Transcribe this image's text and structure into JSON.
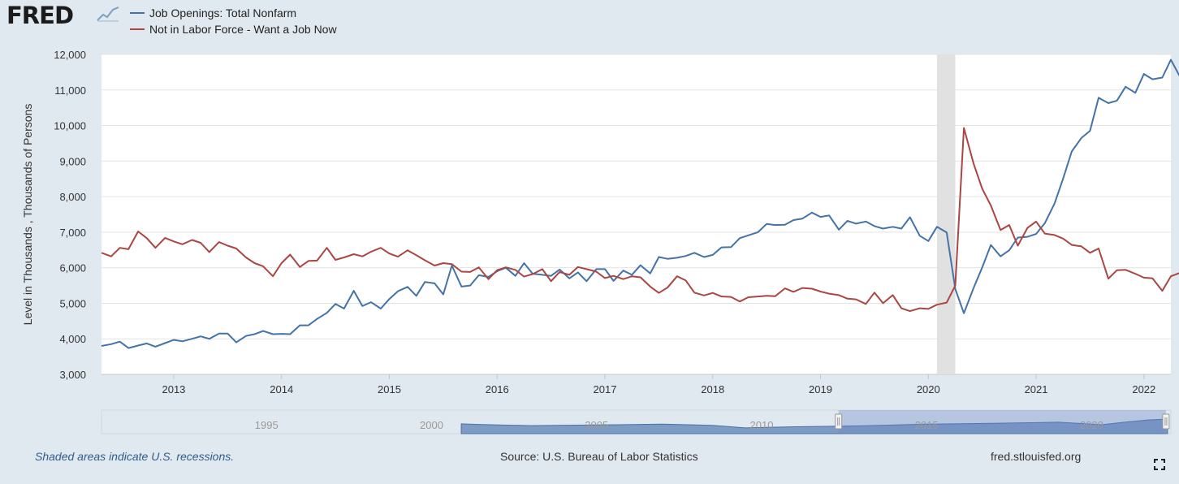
{
  "header": {
    "logo_text": "FRED",
    "logo_icon": "chart-line-icon"
  },
  "legend": [
    {
      "label": "Job Openings: Total Nonfarm",
      "color": "#4572a7"
    },
    {
      "label": "Not in Labor Force - Want a Job Now",
      "color": "#aa4643"
    }
  ],
  "footer": {
    "note": "Shaded areas indicate U.S. recessions.",
    "source": "Source: U.S. Bureau of Labor Statistics",
    "url": "fred.stlouisfed.org",
    "expand_icon": "fullscreen-icon"
  },
  "navigator": {
    "tick_labels": [
      "1995",
      "2000",
      "2005",
      "2010",
      "2015",
      "2020"
    ],
    "selected_range": [
      2012.33,
      2022.25
    ]
  },
  "chart_data": {
    "type": "line",
    "ylabel": "Level in Thousands , Thousands of Persons",
    "xlim": [
      2012.33,
      2022.25
    ],
    "ylim": [
      3000,
      12000
    ],
    "y_ticks": [
      3000,
      4000,
      5000,
      6000,
      7000,
      8000,
      9000,
      10000,
      11000,
      12000
    ],
    "y_tick_labels": [
      "3,000",
      "4,000",
      "5,000",
      "6,000",
      "7,000",
      "8,000",
      "9,000",
      "10,000",
      "11,000",
      "12,000"
    ],
    "x_ticks": [
      2013,
      2014,
      2015,
      2016,
      2017,
      2018,
      2019,
      2020,
      2021,
      2022
    ],
    "x_tick_labels": [
      "2013",
      "2014",
      "2015",
      "2016",
      "2017",
      "2018",
      "2019",
      "2020",
      "2021",
      "2022"
    ],
    "grid": true,
    "recessions": [
      [
        2020.08,
        2020.25
      ]
    ],
    "series": [
      {
        "name": "Job Openings: Total Nonfarm",
        "color": "#4572a7",
        "points": [
          [
            2012.33,
            3800
          ],
          [
            2012.42,
            3850
          ],
          [
            2012.5,
            3920
          ],
          [
            2012.58,
            3740
          ],
          [
            2012.67,
            3810
          ],
          [
            2012.75,
            3870
          ],
          [
            2012.83,
            3780
          ],
          [
            2012.92,
            3880
          ],
          [
            2013.0,
            3970
          ],
          [
            2013.08,
            3930
          ],
          [
            2013.17,
            4000
          ],
          [
            2013.25,
            4070
          ],
          [
            2013.33,
            4000
          ],
          [
            2013.42,
            4150
          ],
          [
            2013.5,
            4150
          ],
          [
            2013.58,
            3900
          ],
          [
            2013.67,
            4080
          ],
          [
            2013.75,
            4130
          ],
          [
            2013.83,
            4220
          ],
          [
            2013.92,
            4130
          ],
          [
            2014.0,
            4140
          ],
          [
            2014.08,
            4130
          ],
          [
            2014.17,
            4380
          ],
          [
            2014.25,
            4380
          ],
          [
            2014.33,
            4560
          ],
          [
            2014.42,
            4730
          ],
          [
            2014.5,
            4980
          ],
          [
            2014.58,
            4850
          ],
          [
            2014.67,
            5350
          ],
          [
            2014.75,
            4920
          ],
          [
            2014.83,
            5030
          ],
          [
            2014.92,
            4850
          ],
          [
            2015.0,
            5120
          ],
          [
            2015.08,
            5340
          ],
          [
            2015.17,
            5460
          ],
          [
            2015.25,
            5210
          ],
          [
            2015.33,
            5600
          ],
          [
            2015.42,
            5560
          ],
          [
            2015.5,
            5250
          ],
          [
            2015.58,
            6060
          ],
          [
            2015.67,
            5470
          ],
          [
            2015.75,
            5500
          ],
          [
            2015.83,
            5790
          ],
          [
            2015.92,
            5740
          ],
          [
            2016.0,
            5900
          ],
          [
            2016.08,
            6000
          ],
          [
            2016.17,
            5770
          ],
          [
            2016.25,
            6130
          ],
          [
            2016.33,
            5830
          ],
          [
            2016.42,
            5800
          ],
          [
            2016.5,
            5770
          ],
          [
            2016.58,
            5950
          ],
          [
            2016.67,
            5700
          ],
          [
            2016.75,
            5870
          ],
          [
            2016.83,
            5620
          ],
          [
            2016.92,
            5960
          ],
          [
            2017.0,
            5960
          ],
          [
            2017.08,
            5630
          ],
          [
            2017.17,
            5920
          ],
          [
            2017.25,
            5800
          ],
          [
            2017.33,
            6070
          ],
          [
            2017.42,
            5840
          ],
          [
            2017.5,
            6300
          ],
          [
            2017.58,
            6250
          ],
          [
            2017.67,
            6280
          ],
          [
            2017.75,
            6330
          ],
          [
            2017.83,
            6420
          ],
          [
            2017.92,
            6300
          ],
          [
            2018.0,
            6360
          ],
          [
            2018.08,
            6570
          ],
          [
            2018.17,
            6580
          ],
          [
            2018.25,
            6830
          ],
          [
            2018.33,
            6910
          ],
          [
            2018.42,
            7000
          ],
          [
            2018.5,
            7230
          ],
          [
            2018.58,
            7200
          ],
          [
            2018.67,
            7210
          ],
          [
            2018.75,
            7340
          ],
          [
            2018.83,
            7380
          ],
          [
            2018.92,
            7550
          ],
          [
            2019.0,
            7430
          ],
          [
            2019.08,
            7470
          ],
          [
            2019.17,
            7070
          ],
          [
            2019.25,
            7320
          ],
          [
            2019.33,
            7240
          ],
          [
            2019.42,
            7300
          ],
          [
            2019.5,
            7170
          ],
          [
            2019.58,
            7100
          ],
          [
            2019.67,
            7150
          ],
          [
            2019.75,
            7100
          ],
          [
            2019.83,
            7420
          ],
          [
            2019.92,
            6900
          ],
          [
            2020.0,
            6750
          ],
          [
            2020.08,
            7150
          ],
          [
            2020.17,
            6990
          ],
          [
            2020.25,
            5400
          ],
          [
            2020.33,
            4720
          ],
          [
            2020.42,
            5430
          ],
          [
            2020.5,
            6010
          ],
          [
            2020.58,
            6640
          ],
          [
            2020.67,
            6320
          ],
          [
            2020.75,
            6490
          ],
          [
            2020.83,
            6850
          ],
          [
            2020.92,
            6870
          ],
          [
            2021.0,
            6950
          ],
          [
            2021.08,
            7250
          ],
          [
            2021.17,
            7800
          ],
          [
            2021.25,
            8500
          ],
          [
            2021.33,
            9270
          ],
          [
            2021.42,
            9650
          ],
          [
            2021.5,
            9850
          ],
          [
            2021.58,
            10780
          ],
          [
            2021.67,
            10630
          ],
          [
            2021.75,
            10700
          ],
          [
            2021.83,
            11090
          ],
          [
            2021.92,
            10920
          ],
          [
            2022.0,
            11450
          ],
          [
            2022.08,
            11300
          ],
          [
            2022.17,
            11350
          ],
          [
            2022.25,
            11850
          ],
          [
            2022.33,
            11400
          ]
        ]
      },
      {
        "name": "Not in Labor Force - Want a Job Now",
        "color": "#aa4643",
        "points": [
          [
            2012.33,
            6420
          ],
          [
            2012.42,
            6320
          ],
          [
            2012.5,
            6560
          ],
          [
            2012.58,
            6520
          ],
          [
            2012.67,
            7020
          ],
          [
            2012.75,
            6830
          ],
          [
            2012.83,
            6560
          ],
          [
            2012.92,
            6840
          ],
          [
            2013.0,
            6740
          ],
          [
            2013.08,
            6660
          ],
          [
            2013.17,
            6780
          ],
          [
            2013.25,
            6700
          ],
          [
            2013.33,
            6440
          ],
          [
            2013.42,
            6720
          ],
          [
            2013.5,
            6620
          ],
          [
            2013.58,
            6540
          ],
          [
            2013.67,
            6290
          ],
          [
            2013.75,
            6130
          ],
          [
            2013.83,
            6040
          ],
          [
            2013.92,
            5760
          ],
          [
            2014.0,
            6130
          ],
          [
            2014.08,
            6370
          ],
          [
            2014.17,
            6020
          ],
          [
            2014.25,
            6190
          ],
          [
            2014.33,
            6200
          ],
          [
            2014.42,
            6560
          ],
          [
            2014.5,
            6220
          ],
          [
            2014.58,
            6290
          ],
          [
            2014.67,
            6380
          ],
          [
            2014.75,
            6320
          ],
          [
            2014.83,
            6450
          ],
          [
            2014.92,
            6560
          ],
          [
            2015.0,
            6400
          ],
          [
            2015.08,
            6310
          ],
          [
            2015.17,
            6490
          ],
          [
            2015.25,
            6350
          ],
          [
            2015.33,
            6210
          ],
          [
            2015.42,
            6060
          ],
          [
            2015.5,
            6130
          ],
          [
            2015.58,
            6100
          ],
          [
            2015.67,
            5890
          ],
          [
            2015.75,
            5880
          ],
          [
            2015.83,
            6010
          ],
          [
            2015.92,
            5680
          ],
          [
            2016.0,
            5930
          ],
          [
            2016.08,
            6010
          ],
          [
            2016.17,
            5940
          ],
          [
            2016.25,
            5750
          ],
          [
            2016.33,
            5820
          ],
          [
            2016.42,
            5960
          ],
          [
            2016.5,
            5620
          ],
          [
            2016.58,
            5880
          ],
          [
            2016.67,
            5800
          ],
          [
            2016.75,
            6020
          ],
          [
            2016.83,
            5960
          ],
          [
            2016.92,
            5890
          ],
          [
            2017.0,
            5710
          ],
          [
            2017.08,
            5770
          ],
          [
            2017.17,
            5680
          ],
          [
            2017.25,
            5760
          ],
          [
            2017.33,
            5730
          ],
          [
            2017.42,
            5470
          ],
          [
            2017.5,
            5290
          ],
          [
            2017.58,
            5440
          ],
          [
            2017.67,
            5760
          ],
          [
            2017.75,
            5640
          ],
          [
            2017.83,
            5300
          ],
          [
            2017.92,
            5220
          ],
          [
            2018.0,
            5290
          ],
          [
            2018.08,
            5190
          ],
          [
            2018.17,
            5180
          ],
          [
            2018.25,
            5050
          ],
          [
            2018.33,
            5170
          ],
          [
            2018.42,
            5190
          ],
          [
            2018.5,
            5210
          ],
          [
            2018.58,
            5200
          ],
          [
            2018.67,
            5420
          ],
          [
            2018.75,
            5320
          ],
          [
            2018.83,
            5430
          ],
          [
            2018.92,
            5410
          ],
          [
            2019.0,
            5330
          ],
          [
            2019.08,
            5270
          ],
          [
            2019.17,
            5230
          ],
          [
            2019.25,
            5130
          ],
          [
            2019.33,
            5110
          ],
          [
            2019.42,
            4980
          ],
          [
            2019.5,
            5300
          ],
          [
            2019.58,
            5000
          ],
          [
            2019.67,
            5230
          ],
          [
            2019.75,
            4860
          ],
          [
            2019.83,
            4780
          ],
          [
            2019.92,
            4860
          ],
          [
            2020.0,
            4840
          ],
          [
            2020.08,
            4960
          ],
          [
            2020.17,
            5020
          ],
          [
            2020.25,
            5500
          ],
          [
            2020.33,
            9930
          ],
          [
            2020.42,
            8930
          ],
          [
            2020.5,
            8220
          ],
          [
            2020.58,
            7750
          ],
          [
            2020.67,
            7060
          ],
          [
            2020.75,
            7200
          ],
          [
            2020.83,
            6620
          ],
          [
            2020.92,
            7120
          ],
          [
            2021.0,
            7300
          ],
          [
            2021.08,
            6960
          ],
          [
            2021.17,
            6920
          ],
          [
            2021.25,
            6820
          ],
          [
            2021.33,
            6640
          ],
          [
            2021.42,
            6600
          ],
          [
            2021.5,
            6420
          ],
          [
            2021.58,
            6540
          ],
          [
            2021.67,
            5690
          ],
          [
            2021.75,
            5930
          ],
          [
            2021.83,
            5940
          ],
          [
            2021.92,
            5830
          ],
          [
            2022.0,
            5720
          ],
          [
            2022.08,
            5700
          ],
          [
            2022.17,
            5350
          ],
          [
            2022.25,
            5760
          ],
          [
            2022.33,
            5850
          ]
        ]
      }
    ]
  }
}
